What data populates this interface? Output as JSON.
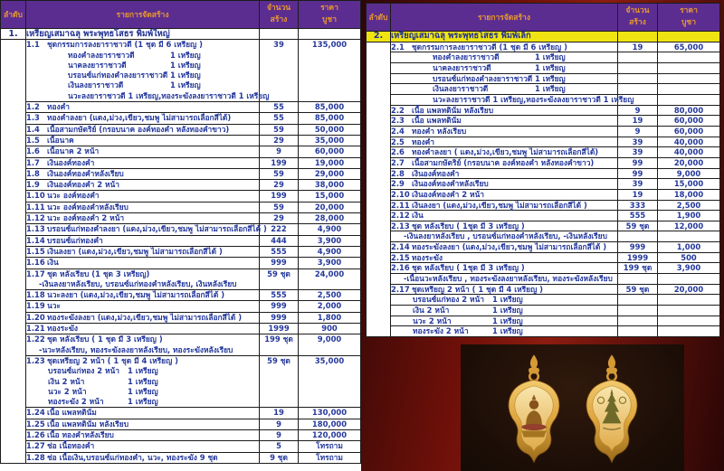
{
  "colors": {
    "header_bg": "#5c2d91",
    "header_text": "#e8992f",
    "highlight_row_bg": "#efe412",
    "body_text": "#24389c",
    "right_panel_bg": "#8c1c10",
    "photo_bg": "#1c0e07",
    "amulet_gold": "#dca43c"
  },
  "tables": [
    {
      "header": {
        "index": "ลำดับ",
        "item": "รายการจัดสร้าง",
        "qty1": "จำนวน",
        "qty2": "สร้าง",
        "price1": "ราคา",
        "price2": "บูชา"
      },
      "section": {
        "num": "1.",
        "title": "เหรียญเสมาฉลุ พระพุทธโสธร พิมพ์ใหญ่",
        "highlight": false
      },
      "bordered_subs": false,
      "rows": [
        {
          "no": "1.1",
          "desc": "ชุดกรรมการลงยาราชาวดี    (1 ชุด มี 6 เหรียญ )",
          "qty": "39",
          "price": "135,000",
          "sub": [
            {
              "i": "a",
              "name": "ทองคำลงยาราชาวดี",
              "qty": "1  เหรียญ"
            },
            {
              "i": "a",
              "name": "นาคลงยาราชาวดี",
              "qty": "1  เหรียญ"
            },
            {
              "i": "a",
              "name": "บรอนซ์แก่ทองคำลงยาราชาวดี",
              "qty": "1  เหรียญ"
            },
            {
              "i": "a",
              "name": "เงินลงยาราชาวดี",
              "qty": "1  เหรียญ"
            },
            {
              "i": "a",
              "name": "นวะลงยาราชาวดี 1 เหรียญ,ทองระฆังลงยาราชาวดี 1 เหรียญ"
            }
          ]
        },
        {
          "no": "1.2",
          "desc": "ทองคำ",
          "qty": "55",
          "price": "85,000"
        },
        {
          "no": "1.3",
          "desc": "ทองคำลงยา (แดง,ม่วง,เขียว,ชมพู ไม่สามารถเลือกสีได้)",
          "qty": "55",
          "price": "85,000"
        },
        {
          "no": "1.4",
          "desc": "เนื้อสามกษัตริย์ (กรอบนาค องค์ทองคำ หลังทองคำขาว)",
          "qty": "59",
          "price": "50,000"
        },
        {
          "no": "1.5",
          "desc": "เนื้อนาค",
          "qty": "29",
          "price": "35,000"
        },
        {
          "no": "1.6",
          "desc": "เนื้อนาค 2 หน้า",
          "qty": "9",
          "price": "60,000"
        },
        {
          "no": "1.7",
          "desc": "เงินองค์ทองคำ",
          "qty": "199",
          "price": "19,000"
        },
        {
          "no": "1.8",
          "desc": "เงินองค์ทองคำหลังเรียบ",
          "qty": "59",
          "price": "29,000"
        },
        {
          "no": "1.9",
          "desc": "เงินองค์ทองคำ 2 หน้า",
          "qty": "29",
          "price": "38,000"
        },
        {
          "no": "1.10",
          "desc": "นวะ องค์ทองคำ",
          "qty": "199",
          "price": "15,000"
        },
        {
          "no": "1.11",
          "desc": "นวะ องค์ทองคำหลังเรียบ",
          "qty": "59",
          "price": "20,000"
        },
        {
          "no": "1.12",
          "desc": "นวะ องค์ทองคำ 2 หน้า",
          "qty": "29",
          "price": "28,000"
        },
        {
          "no": "1.13",
          "desc": "บรอนซ์แก่ทองคำลงยา  (แดง,ม่วง,เขียว,ชมพู ไม่สามารถเลือกสีได้ )",
          "qty": "222",
          "price": "4,900"
        },
        {
          "no": "1.14",
          "desc": "บรอนซ์แก่ทองคำ",
          "qty": "444",
          "price": "3,900"
        },
        {
          "no": "1.15",
          "desc": "เงินลงยา  (แดง,ม่วง,เขียว,ชมพู ไม่สามารถเลือกสีได้ )",
          "qty": "555",
          "price": "4,900"
        },
        {
          "no": "1.16",
          "desc": "เงิน",
          "qty": "999",
          "price": "3,900"
        },
        {
          "no": "1.17",
          "desc": "ชุด หลังเรียบ (1 ชุด  3 เหรียญ)",
          "qty": "59 ชุด",
          "price": "24,000",
          "sub": [
            {
              "i": "d",
              "name": "-เงินลงยาหลังเรียบ, บรอนซ์แก่ทองคำหลังเรียบ, เงินหลังเรียบ"
            }
          ]
        },
        {
          "no": "1.18",
          "desc": "นวะลงยา  (แดง,ม่วง,เขียว,ชมพู  ไม่สามารถเลือกสีได้ )",
          "qty": "555",
          "price": "2,500"
        },
        {
          "no": "1.19",
          "desc": "นวะ",
          "qty": "999",
          "price": "2,000"
        },
        {
          "no": "1.20",
          "desc": "ทองระฆังลงยา (แดง,ม่วง,เขียว,ชมพู  ไม่สามารถเลือกสีได้ )",
          "qty": "999",
          "price": "1,800"
        },
        {
          "no": "1.21",
          "desc": "ทองระฆัง",
          "qty": "1999",
          "price": "900"
        },
        {
          "no": "1.22",
          "desc": "ชุด หลังเรียบ ( 1 ชุด มี 3 เหรียญ )",
          "qty": "199 ชุด",
          "price": "9,000",
          "sub": [
            {
              "i": "d",
              "name": "-นวะหลังเรียบ, ทองระฆังลงยาหลังเรียบ, ทองระฆังหลังเรียบ"
            }
          ]
        },
        {
          "no": "1.23",
          "desc": "ชุดเหรียญ 2 หน้า  ( 1 ชุด  มี 4 เหรียญ )",
          "qty": "59 ชุด",
          "price": "35,000",
          "sub": [
            {
              "i": "b",
              "name": "บรอนซ์แก่ทอง 2 หน้า",
              "qty": "1  เหรียญ"
            },
            {
              "i": "b",
              "name": "เงิน 2 หน้า",
              "qty": "1  เหรียญ"
            },
            {
              "i": "b",
              "name": "นวะ 2 หน้า",
              "qty": "1  เหรียญ"
            },
            {
              "i": "b",
              "name": "ทองระฆัง 2 หน้า",
              "qty": "1  เหรียญ"
            }
          ]
        },
        {
          "no": "1.24",
          "desc": "เนื้อ แพลทตินั่ม",
          "qty": "19",
          "price": "130,000"
        },
        {
          "no": "1.25",
          "desc": "เนื้อ แพลทตินั่ม หลังเรียบ",
          "qty": "9",
          "price": "180,000"
        },
        {
          "no": "1.26",
          "desc": "เนื้อ ทองคำหลังเรียบ",
          "qty": "9",
          "price": "120,000"
        },
        {
          "no": "1.27",
          "desc": "ช่อ เนื้อทองคำ",
          "qty": "5",
          "price": "โทรถาม"
        },
        {
          "no": "1.28",
          "desc": "ช่อ เนื้อเงิน,บรอนซ์แก่ทองคำ, นวะ, ทองระฆัง 9 ชุด",
          "qty": "9 ชุด",
          "price": "โทรถาม"
        }
      ]
    },
    {
      "header": {
        "index": "ลำดับ",
        "item": "รายการจัดสร้าง",
        "qty1": "จำนวน",
        "qty2": "สร้าง",
        "price1": "ราคา",
        "price2": "บูชา"
      },
      "section": {
        "num": "2.",
        "title": "เหรียญเสมาฉลุ พระพุทธโสธร พิมพ์เล็ก",
        "highlight": true
      },
      "bordered_subs": true,
      "rows": [
        {
          "no": "2.1",
          "desc": "ชุดกรรมการลงยาราชาวดี    (1 ชุด มี 6 เหรียญ )",
          "qty": "19",
          "price": "65,000",
          "sub": [
            {
              "i": "a",
              "name": "ทองคำลงยาราชาวดี",
              "qty": "1  เหรียญ"
            },
            {
              "i": "a",
              "name": "นาคลงยาราชาวดี",
              "qty": "1  เหรียญ"
            },
            {
              "i": "a",
              "name": "บรอนซ์แก่ทองคำลงยาราชาวดี",
              "qty": "1  เหรียญ"
            },
            {
              "i": "a",
              "name": "เงินลงยาราชาวดี",
              "qty": "1  เหรียญ"
            },
            {
              "i": "a",
              "name": "นวะลงยาราชาวดี 1 เหรียญ,ทองระฆังลงยาราชาวดี 1 เหรียญ"
            }
          ]
        },
        {
          "no": "2.2",
          "desc": "เนื้อ แพลทตินั่ม   หลังเรียบ",
          "qty": "9",
          "price": "80,000"
        },
        {
          "no": "2.3",
          "desc": "เนื้อ แพลทตินั่ม",
          "qty": "19",
          "price": "60,000"
        },
        {
          "no": "2.4",
          "desc": "ทองคำ หลังเรียบ",
          "qty": "9",
          "price": "60,000"
        },
        {
          "no": "2.5",
          "desc": "ทองคำ",
          "qty": "39",
          "price": "40,000"
        },
        {
          "no": "2.6",
          "desc": "ทองคำลงยา ( แดง,ม่วง,เขียว,ชมพู  ไม่สามารถเลือกสีได้)",
          "qty": "39",
          "price": "40,000"
        },
        {
          "no": "2.7",
          "desc": "เนื้อสามกษัตริย์ (กรอบนาค องค์ทองคำ หลังทองคำขาว)",
          "qty": "99",
          "price": "20,000"
        },
        {
          "no": "2.8",
          "desc": "เงินองค์ทองคำ",
          "qty": "99",
          "price": "9,000"
        },
        {
          "no": "2.9",
          "desc": "เงินองค์ทองคำหลังเรียบ",
          "qty": "39",
          "price": "15,000"
        },
        {
          "no": "2.10",
          "desc": "เงินองค์ทองคำ 2 หน้า",
          "qty": "19",
          "price": "18,000"
        },
        {
          "no": "2.11",
          "desc": "เงินลงยา   (แดง,ม่วง,เขียว,ชมพู  ไม่สามารถเลือกสีได้ )",
          "qty": "333",
          "price": "2,500"
        },
        {
          "no": "2.12",
          "desc": "เงิน",
          "qty": "555",
          "price": "1,900"
        },
        {
          "no": "2.13",
          "desc": "ชุด หลังเรียบ  ( 1ชุด มี 3 เหรียญ )",
          "qty": "59 ชุด",
          "price": "12,000",
          "sub": [
            {
              "i": "d",
              "name": "-เงินลงยาหลังเรียบ , บรอนซ์แก่ทองคำหลังเรียบ, -เงินหลังเรียบ"
            }
          ]
        },
        {
          "no": "2.14",
          "desc": "ทองระฆังลงยา (แดง,ม่วง,เขียว,ชมพู ไม่สามารถเลือกสีได้ )",
          "qty": "999",
          "price": "1,000"
        },
        {
          "no": "2.15",
          "desc": "ทองระฆัง",
          "qty": "1999",
          "price": "500"
        },
        {
          "no": "2.16",
          "desc": "ชุด หลังเรียบ  ( 1ชุด มี 3 เหรียญ )",
          "qty": "199 ชุด",
          "price": "3,900",
          "sub": [
            {
              "i": "d",
              "name": "-เนื้อนวะหลังเรียบ , ทองระฆังลงยาหลังเรียบ, ทองระฆังหลังเรียบ"
            }
          ]
        },
        {
          "no": "2.17",
          "desc": "ชุดเหรียญ 2 หน้า  ( 1 ชุด มี 4 เหรียญ )",
          "qty": "59 ชุด",
          "price": "20,000",
          "sub": [
            {
              "i": "b",
              "name": "บรอนซ์แก่ทอง 2 หน้า",
              "qty": "1  เหรียญ"
            },
            {
              "i": "b",
              "name": "เงิน 2 หน้า",
              "qty": "1  เหรียญ"
            },
            {
              "i": "b",
              "name": "นวะ 2 หน้า",
              "qty": "1  เหรียญ"
            },
            {
              "i": "b",
              "name": "ทองระฆัง 2 หน้า",
              "qty": "1  เหรียญ"
            }
          ]
        }
      ]
    }
  ]
}
